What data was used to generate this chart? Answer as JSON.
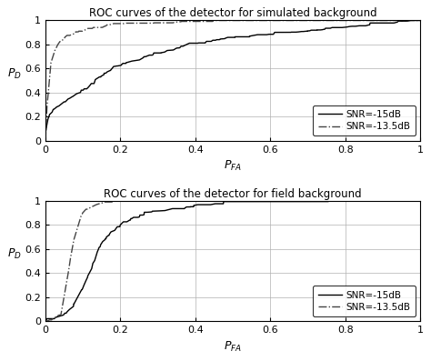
{
  "title1": "ROC curves of the detector for simulated background",
  "title2": "ROC curves of the detector for field background",
  "xlabel": "$P_{FA}$",
  "ylabel": "$P_D$",
  "legend1": "SNR=-15dB",
  "legend2": "SNR=-13.5dB",
  "xlim": [
    0,
    1
  ],
  "ylim": [
    0,
    1
  ],
  "xticks": [
    0,
    0.2,
    0.4,
    0.6,
    0.8,
    1
  ],
  "yticks": [
    0,
    0.2,
    0.4,
    0.6,
    0.8,
    1
  ],
  "xticklabels": [
    "0",
    "0.2",
    "0.4",
    "0.6",
    "0.8",
    "1"
  ],
  "yticklabels": [
    "0",
    "0.2",
    "0.4",
    "0.6",
    "0.8",
    "1"
  ],
  "grid_color": "#b0b0b0",
  "line_color_solid": "#000000",
  "line_color_dash": "#444444",
  "bg_color": "#ffffff",
  "fig_width": 4.74,
  "fig_height": 3.97,
  "dpi": 100
}
